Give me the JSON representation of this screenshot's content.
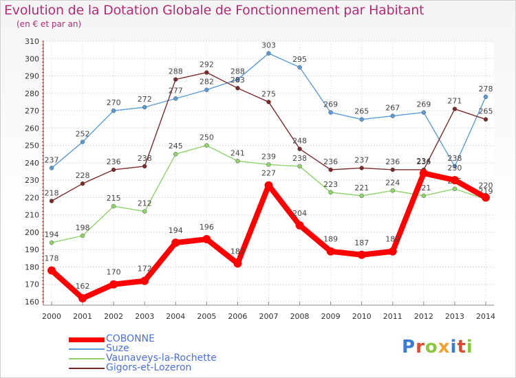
{
  "header": {
    "title": "Evolution de la Dotation Globale de Fonctionnement par Habitant",
    "subtitle": "(en € et par an)"
  },
  "logo": {
    "text": "Proxiti",
    "colors": [
      "#3a7bd5",
      "#e04a2f",
      "#8cc63f",
      "#f0a030",
      "#3a7bd5",
      "#e04a2f",
      "#8cc63f"
    ]
  },
  "chart_data": {
    "type": "line",
    "title": "Evolution de la Dotation Globale de Fonctionnement par Habitant",
    "subtitle": "(en € et par an)",
    "xlabel": "",
    "ylabel": "",
    "categories": [
      "2000",
      "2001",
      "2002",
      "2003",
      "2004",
      "2005",
      "2006",
      "2007",
      "2008",
      "2009",
      "2010",
      "2011",
      "2012",
      "2013",
      "2014"
    ],
    "ylim": [
      160,
      310
    ],
    "yticks": [
      160,
      170,
      180,
      190,
      200,
      210,
      220,
      230,
      240,
      250,
      260,
      270,
      280,
      290,
      300,
      310
    ],
    "grid": true,
    "legend": "bottom-left",
    "series": [
      {
        "name": "Suze",
        "color": "#5b9bd5",
        "stroke": "thin",
        "values": [
          237,
          252,
          270,
          272,
          277,
          282,
          288,
          303,
          295,
          269,
          265,
          267,
          269,
          238,
          278
        ]
      },
      {
        "name": "Gigors-et-Lozeron",
        "color": "#7b2a2a",
        "stroke": "thin",
        "values": [
          218,
          228,
          236,
          238,
          288,
          292,
          283,
          275,
          248,
          236,
          237,
          236,
          236,
          271,
          265
        ]
      },
      {
        "name": "Vaunaveys-la-Rochette",
        "color": "#8fd16a",
        "stroke": "thin",
        "values": [
          194,
          198,
          215,
          212,
          245,
          250,
          241,
          239,
          238,
          223,
          221,
          224,
          221,
          225,
          219
        ]
      },
      {
        "name": "COBONNE",
        "color": "#ff0000",
        "stroke": "thick",
        "values": [
          178,
          162,
          170,
          172,
          194,
          196,
          182,
          227,
          204,
          189,
          187,
          189,
          234,
          230,
          220
        ]
      }
    ],
    "legend_order": [
      "COBONNE",
      "Suze",
      "Vaunaveys-la-Rochette",
      "Gigors-et-Lozeron"
    ]
  }
}
